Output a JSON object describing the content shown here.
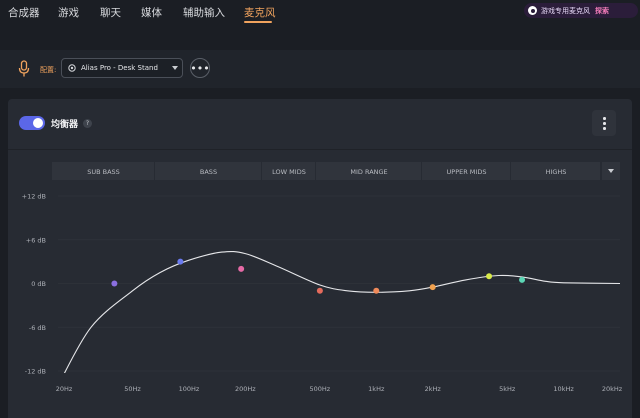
{
  "nav": {
    "tabs": [
      {
        "label": "合成器"
      },
      {
        "label": "游戏"
      },
      {
        "label": "聊天"
      },
      {
        "label": "媒体"
      },
      {
        "label": "辅助输入"
      },
      {
        "label": "麦克风",
        "active": true
      }
    ]
  },
  "promo": {
    "text": "游戏专用麦克风",
    "action": "探索"
  },
  "device_bar": {
    "config_label": "配置:",
    "device_name": "Alias Pro - Desk Stand"
  },
  "equalizer": {
    "title": "均衡器",
    "enabled": true,
    "help": "?"
  },
  "chart_data": {
    "type": "line",
    "bands": [
      "SUB BASS",
      "BASS",
      "LOW MIDS",
      "MID RANGE",
      "UPPER MIDS",
      "HIGHS"
    ],
    "y_ticks": [
      "+12 dB",
      "+6 dB",
      "0 dB",
      "-6 dB",
      "-12 dB"
    ],
    "x_ticks": [
      "20Hz",
      "50Hz",
      "100Hz",
      "200Hz",
      "500Hz",
      "1kHz",
      "2kHz",
      "5kHz",
      "10kHz",
      "20kHz"
    ],
    "ylim": [
      -12,
      12
    ],
    "xlim": [
      20,
      20000
    ],
    "x_scale": "log",
    "points": [
      {
        "freq": 40,
        "gain": 0,
        "color": "#8b6fe0"
      },
      {
        "freq": 90,
        "gain": 3,
        "color": "#6b7bf0"
      },
      {
        "freq": 190,
        "gain": 2,
        "color": "#e66aa6"
      },
      {
        "freq": 500,
        "gain": -1,
        "color": "#e56b5c"
      },
      {
        "freq": 1000,
        "gain": -1,
        "color": "#ef8a5a"
      },
      {
        "freq": 2000,
        "gain": -0.5,
        "color": "#f2a24f"
      },
      {
        "freq": 4000,
        "gain": 1,
        "color": "#d9ea4a"
      },
      {
        "freq": 6000,
        "gain": 0.5,
        "color": "#5cd6b5"
      }
    ],
    "curve": [
      [
        20,
        -14
      ],
      [
        30,
        -6
      ],
      [
        50,
        -1
      ],
      [
        70,
        1.5
      ],
      [
        100,
        3.2
      ],
      [
        150,
        4.3
      ],
      [
        200,
        4.1
      ],
      [
        300,
        2.3
      ],
      [
        500,
        -0.2
      ],
      [
        700,
        -1
      ],
      [
        1000,
        -1.2
      ],
      [
        1500,
        -1
      ],
      [
        2000,
        -0.5
      ],
      [
        3000,
        0.5
      ],
      [
        4500,
        1.1
      ],
      [
        6000,
        0.9
      ],
      [
        8000,
        0.3
      ],
      [
        10000,
        0.1
      ],
      [
        20000,
        0
      ]
    ]
  },
  "colors": {
    "accent": "#5b67e8",
    "active_tab": "#f0a35e",
    "curve": "#e6e7ea"
  }
}
